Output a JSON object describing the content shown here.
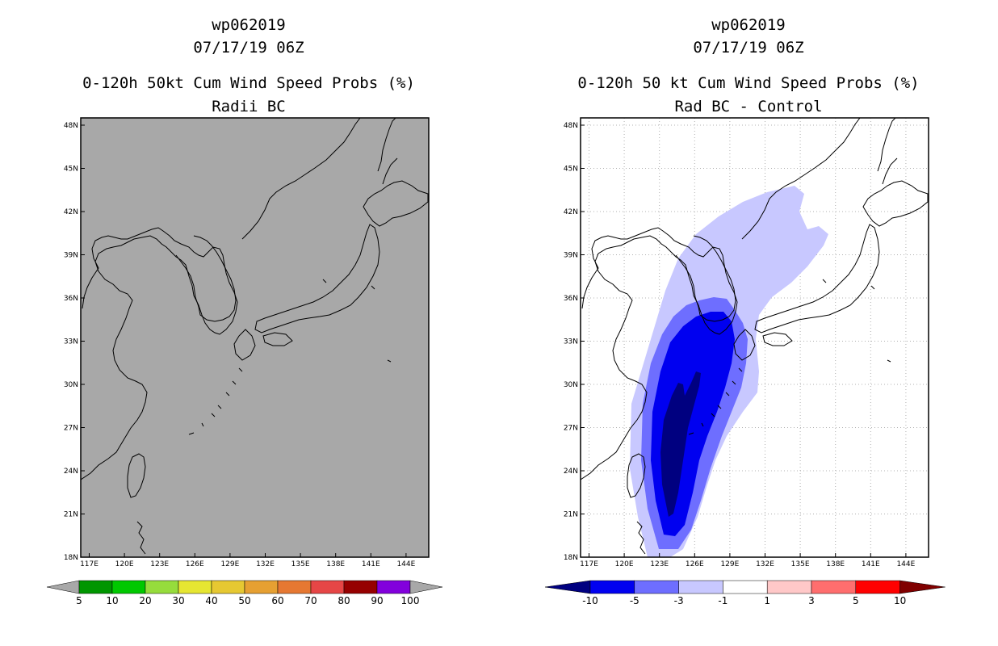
{
  "left_panel": {
    "storm_id": "wp062019",
    "datetime": "07/17/19 06Z",
    "title": "0-120h 50kt Cum Wind Speed Probs (%)",
    "subtitle": "Radii BC",
    "colorbar": {
      "labels": [
        "5",
        "10",
        "20",
        "30",
        "40",
        "50",
        "60",
        "70",
        "80",
        "90",
        "100"
      ],
      "colors": [
        "#009600",
        "#00c800",
        "#96dc3c",
        "#e6e632",
        "#e6c832",
        "#e6a032",
        "#e67832",
        "#e64646",
        "#960000",
        "#8200dc"
      ],
      "extension_color": "#a8a8a8"
    }
  },
  "right_panel": {
    "storm_id": "wp062019",
    "datetime": "07/17/19 06Z",
    "title": "0-120h 50 kt Cum Wind Speed Probs (%)",
    "subtitle": "Rad BC - Control",
    "colorbar": {
      "labels": [
        "-10",
        "-5",
        "-3",
        "-1",
        "1",
        "3",
        "5",
        "10"
      ],
      "colors": [
        "#0000f0",
        "#6e6eff",
        "#c8c8ff",
        "#ffffff",
        "#ffc8c8",
        "#ff6e6e",
        "#ff0000"
      ],
      "low_extension_color": "#000080",
      "high_extension_color": "#800000"
    }
  },
  "axes": {
    "lon_labels": [
      "117E",
      "120E",
      "123E",
      "126E",
      "129E",
      "132E",
      "135E",
      "138E",
      "141E",
      "144E"
    ],
    "lat_labels": [
      "48N",
      "45N",
      "42N",
      "39N",
      "36N",
      "33N",
      "30N",
      "27N",
      "24N",
      "21N",
      "18N"
    ]
  },
  "colors": {
    "land_background": "#a8a8a8",
    "contour_dark": "#000080",
    "contour_mid": "#0000f0",
    "contour_light": "#6e6eff",
    "contour_lightest": "#c8c8ff"
  }
}
